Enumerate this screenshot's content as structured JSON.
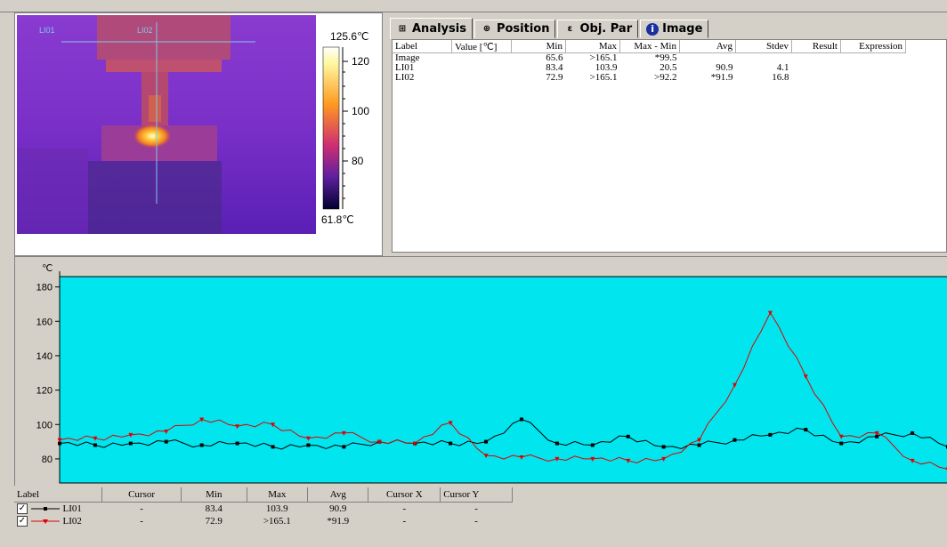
{
  "thermal_image": {
    "line_labels": [
      "LI01",
      "LI02"
    ],
    "scale_max": "125.6℃",
    "scale_min": "61.8℃",
    "scale_ticks": [
      "120",
      "100",
      "80"
    ]
  },
  "tabs": [
    {
      "label": "Analysis",
      "icon": "analysis-icon"
    },
    {
      "label": "Position",
      "icon": "position-icon"
    },
    {
      "label": "Obj. Par",
      "icon": "object-params-icon"
    },
    {
      "label": "Image",
      "icon": "info-icon"
    }
  ],
  "analysis_table": {
    "columns": [
      "Label",
      "Value [℃]",
      "Min",
      "Max",
      "Max - Min",
      "Avg",
      "Stdev",
      "Result",
      "Expression"
    ],
    "rows": [
      [
        "Image",
        "",
        "65.6",
        ">165.1",
        "*99.5",
        "",
        "",
        "",
        ""
      ],
      [
        "LI01",
        "",
        "83.4",
        "103.9",
        "20.5",
        "90.9",
        "4.1",
        "",
        ""
      ],
      [
        "LI02",
        "",
        "72.9",
        ">165.1",
        ">92.2",
        "*91.9",
        "16.8",
        "",
        ""
      ]
    ]
  },
  "chart_data": {
    "type": "line",
    "ylabel": "℃",
    "ylim": [
      66,
      186
    ],
    "yticks": [
      80,
      100,
      120,
      140,
      160,
      180
    ],
    "grid": false,
    "background": "#00e5ee",
    "x": [
      0,
      4,
      8,
      12,
      16,
      20,
      24,
      28,
      32,
      36,
      40,
      44,
      48,
      52,
      56,
      60,
      64,
      68,
      72,
      76,
      80,
      84,
      88,
      92,
      96,
      100
    ],
    "series": [
      {
        "name": "LI01",
        "color": "#000000",
        "values": [
          89,
          88,
          89,
          90,
          88,
          89,
          87,
          88,
          87,
          90,
          89,
          89,
          90,
          103,
          89,
          88,
          93,
          87,
          88,
          91,
          94,
          97,
          89,
          93,
          95,
          87
        ]
      },
      {
        "name": "LI02",
        "color": "#e00000",
        "values": [
          91,
          92,
          94,
          96,
          103,
          99,
          100,
          92,
          95,
          90,
          89,
          101,
          82,
          81,
          80,
          80,
          79,
          80,
          91,
          123,
          165,
          128,
          93,
          95,
          79,
          74
        ]
      }
    ]
  },
  "legend_table": {
    "columns": [
      "Label",
      "Cursor",
      "Min",
      "Max",
      "Avg",
      "Cursor X",
      "Cursor Y"
    ],
    "rows": [
      {
        "label": "LI01",
        "color": "#000000",
        "cursor": "-",
        "min": "83.4",
        "max": "103.9",
        "avg": "90.9",
        "cursor_x": "-",
        "cursor_y": "-"
      },
      {
        "label": "LI02",
        "color": "#e00000",
        "cursor": "-",
        "min": "72.9",
        "max": ">165.1",
        "avg": "*91.9",
        "cursor_x": "-",
        "cursor_y": "-"
      }
    ]
  }
}
